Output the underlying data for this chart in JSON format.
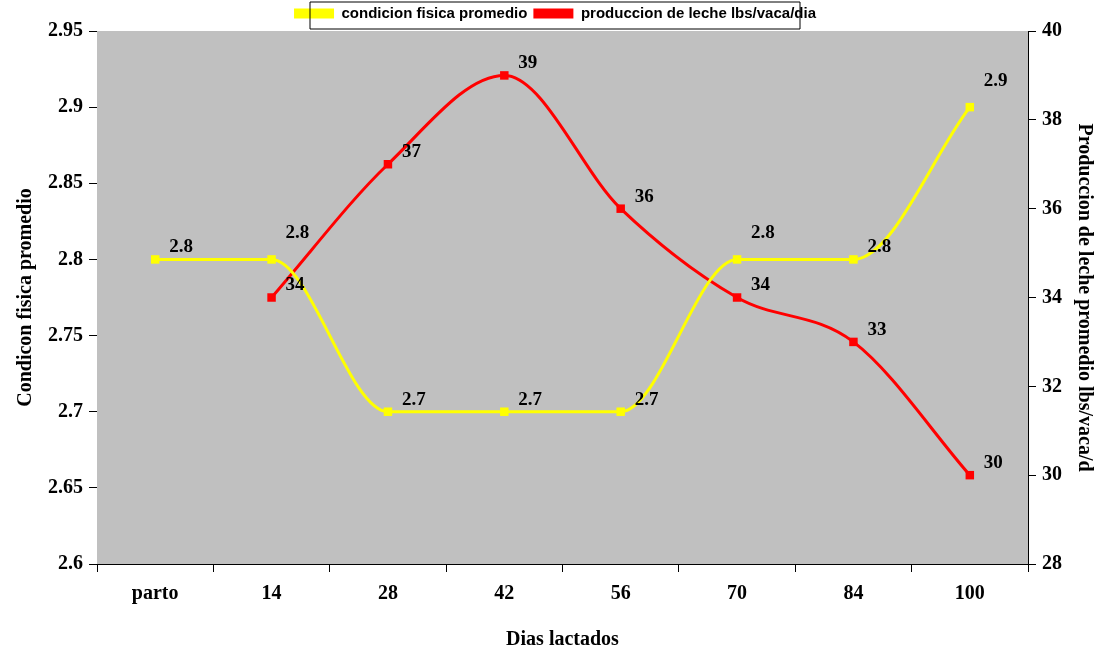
{
  "chart_data": {
    "type": "line",
    "categories": [
      "parto",
      "14",
      "28",
      "42",
      "56",
      "70",
      "84",
      "100"
    ],
    "series": [
      {
        "name": "condicion fisica promedio",
        "color": "#ffff00",
        "values": [
          2.8,
          2.8,
          2.7,
          2.7,
          2.7,
          2.8,
          2.8,
          2.9
        ]
      },
      {
        "name": "produccion de leche lbs/vaca/dia",
        "color": "#ff0000",
        "axis": "y2",
        "values": [
          null,
          34,
          37,
          39,
          36,
          34,
          33,
          30
        ]
      }
    ],
    "xlabel": "Dias lactados",
    "ylabel": "Condicon fisica promedio",
    "y2label": "Produccion de leche promedio lbs/vaca/d",
    "ylim": [
      2.6,
      2.95
    ],
    "yticks": [
      2.6,
      2.65,
      2.7,
      2.75,
      2.8,
      2.85,
      2.9,
      2.95
    ],
    "y2lim": [
      28,
      40
    ],
    "y2ticks": [
      28,
      30,
      32,
      34,
      36,
      38,
      40
    ],
    "legend": "top",
    "marker": "square",
    "data_labels": true
  }
}
